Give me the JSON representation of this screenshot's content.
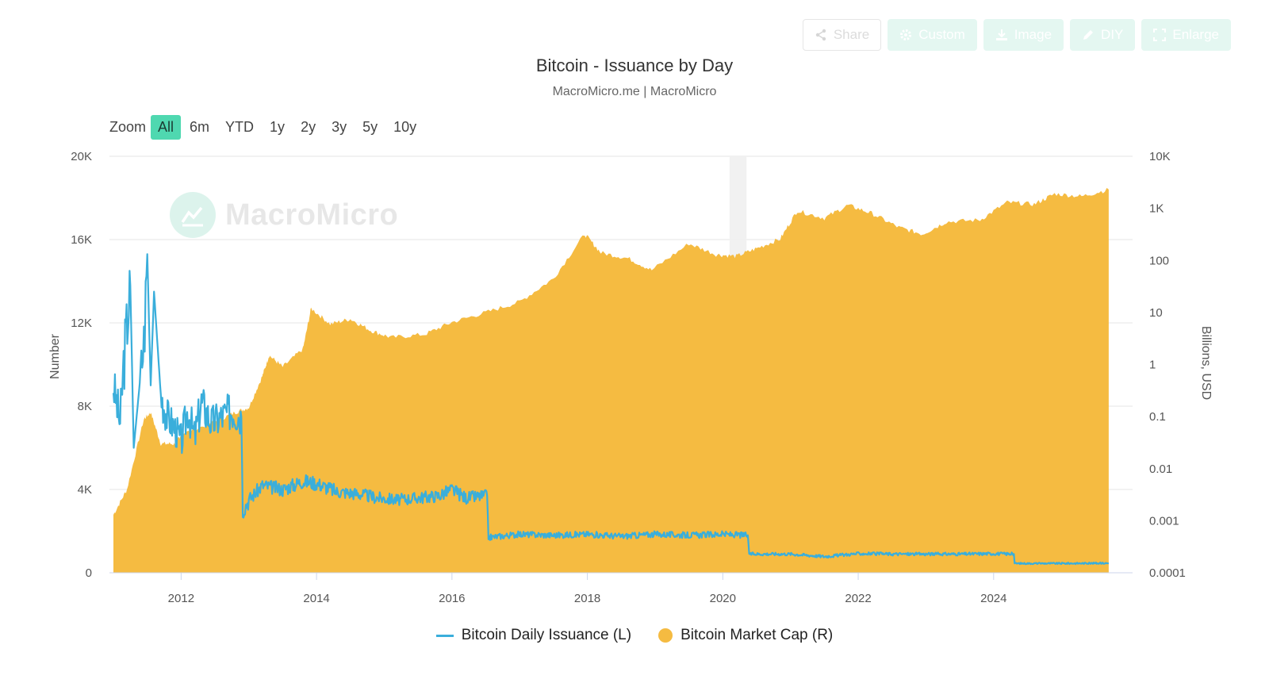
{
  "toolbar": {
    "share": "Share",
    "custom": "Custom",
    "image": "Image",
    "diy": "DIY",
    "enlarge": "Enlarge"
  },
  "zoom": {
    "label": "Zoom",
    "options": [
      "All",
      "6m",
      "YTD",
      "1y",
      "2y",
      "3y",
      "5y",
      "10y"
    ],
    "active": "All"
  },
  "watermark": "MacroMicro",
  "colors": {
    "issuance": "#3aaedb",
    "market_cap": "#f5bb41",
    "accent": "#4fd8b0",
    "grid": "#e6e6e6"
  },
  "chart_data": {
    "type": "line",
    "title": "Bitcoin - Issuance by Day",
    "subtitle": "MacroMicro.me | MacroMicro",
    "x_ticks": [
      "2012",
      "2014",
      "2016",
      "2018",
      "2020",
      "2022",
      "2024"
    ],
    "y_left": {
      "label": "Number",
      "range": [
        0,
        20000
      ],
      "tick_values": [
        0,
        4000,
        8000,
        12000,
        16000,
        20000
      ],
      "tick_labels": [
        "0",
        "4K",
        "8K",
        "12K",
        "16K",
        "20K"
      ]
    },
    "y_right": {
      "label": "Billions, USD",
      "scale": "log",
      "range": [
        0.0001,
        10000
      ],
      "tick_values": [
        0.0001,
        0.001,
        0.01,
        0.1,
        1,
        10,
        100,
        1000,
        10000
      ],
      "tick_labels": [
        "0.0001",
        "0.001",
        "0.01",
        "0.1",
        "1",
        "10",
        "100",
        "1K",
        "10K"
      ]
    },
    "highlight_band": {
      "from": "2020.1",
      "to": "2020.35"
    },
    "legend_position": "bottom",
    "grid": true,
    "series": [
      {
        "name": "Bitcoin Daily Issuance (L)",
        "type": "line",
        "axis": "left",
        "points": [
          [
            "2011.0",
            9000
          ],
          [
            "2011.1",
            7200
          ],
          [
            "2011.15",
            10000
          ],
          [
            "2011.25",
            13800
          ],
          [
            "2011.3",
            6000
          ],
          [
            "2011.4",
            9500
          ],
          [
            "2011.45",
            11000
          ],
          [
            "2011.5",
            15300
          ],
          [
            "2011.55",
            9000
          ],
          [
            "2011.6",
            13500
          ],
          [
            "2011.7",
            8500
          ],
          [
            "2011.8",
            7500
          ],
          [
            "2011.9",
            7000
          ],
          [
            "2012.0",
            6300
          ],
          [
            "2012.1",
            7800
          ],
          [
            "2012.2",
            6500
          ],
          [
            "2012.3",
            8200
          ],
          [
            "2012.45",
            7200
          ],
          [
            "2012.6",
            7500
          ],
          [
            "2012.75",
            7800
          ],
          [
            "2012.89",
            7500
          ],
          [
            "2012.91",
            3000
          ],
          [
            "2013.0",
            3500
          ],
          [
            "2013.2",
            4200
          ],
          [
            "2013.5",
            4000
          ],
          [
            "2013.8",
            4400
          ],
          [
            "2014.0",
            4300
          ],
          [
            "2014.3",
            3900
          ],
          [
            "2014.6",
            3800
          ],
          [
            "2014.9",
            3600
          ],
          [
            "2015.2",
            3500
          ],
          [
            "2015.5",
            3600
          ],
          [
            "2015.8",
            3700
          ],
          [
            "2016.0",
            4000
          ],
          [
            "2016.2",
            3600
          ],
          [
            "2016.52",
            3700
          ],
          [
            "2016.54",
            1700
          ],
          [
            "2017.0",
            1850
          ],
          [
            "2017.5",
            1800
          ],
          [
            "2018.0",
            1850
          ],
          [
            "2018.5",
            1750
          ],
          [
            "2019.0",
            1850
          ],
          [
            "2019.5",
            1800
          ],
          [
            "2020.0",
            1850
          ],
          [
            "2020.37",
            1800
          ],
          [
            "2020.39",
            900
          ],
          [
            "2021.0",
            900
          ],
          [
            "2021.5",
            780
          ],
          [
            "2022.0",
            920
          ],
          [
            "2022.5",
            900
          ],
          [
            "2023.0",
            900
          ],
          [
            "2023.5",
            900
          ],
          [
            "2024.0",
            920
          ],
          [
            "2024.3",
            900
          ],
          [
            "2024.31",
            450
          ],
          [
            "2025.0",
            450
          ],
          [
            "2025.7",
            460
          ]
        ]
      },
      {
        "name": "Bitcoin Market Cap (R)",
        "type": "area",
        "axis": "right",
        "points": [
          [
            "2011.0",
            0.0013
          ],
          [
            "2011.2",
            0.004
          ],
          [
            "2011.45",
            0.09
          ],
          [
            "2011.55",
            0.12
          ],
          [
            "2011.7",
            0.03
          ],
          [
            "2011.9",
            0.03
          ],
          [
            "2012.0",
            0.045
          ],
          [
            "2012.5",
            0.08
          ],
          [
            "2012.8",
            0.12
          ],
          [
            "2013.0",
            0.15
          ],
          [
            "2013.2",
            0.6
          ],
          [
            "2013.3",
            1.5
          ],
          [
            "2013.5",
            0.9
          ],
          [
            "2013.8",
            2.0
          ],
          [
            "2013.92",
            12
          ],
          [
            "2014.2",
            6
          ],
          [
            "2014.5",
            7.5
          ],
          [
            "2014.8",
            4.5
          ],
          [
            "2015.1",
            3.3
          ],
          [
            "2015.6",
            3.8
          ],
          [
            "2016.0",
            6.5
          ],
          [
            "2016.5",
            10
          ],
          [
            "2017.0",
            16
          ],
          [
            "2017.5",
            45
          ],
          [
            "2017.96",
            320
          ],
          [
            "2018.2",
            140
          ],
          [
            "2018.6",
            110
          ],
          [
            "2018.95",
            65
          ],
          [
            "2019.5",
            210
          ],
          [
            "2019.9",
            130
          ],
          [
            "2020.2",
            120
          ],
          [
            "2020.5",
            170
          ],
          [
            "2020.85",
            260
          ],
          [
            "2021.1",
            900
          ],
          [
            "2021.5",
            650
          ],
          [
            "2021.85",
            1150
          ],
          [
            "2022.2",
            800
          ],
          [
            "2022.6",
            430
          ],
          [
            "2022.95",
            320
          ],
          [
            "2023.3",
            550
          ],
          [
            "2023.8",
            600
          ],
          [
            "2024.2",
            1300
          ],
          [
            "2024.6",
            1200
          ],
          [
            "2024.9",
            1900
          ],
          [
            "2025.3",
            1700
          ],
          [
            "2025.7",
            2300
          ]
        ]
      }
    ]
  }
}
